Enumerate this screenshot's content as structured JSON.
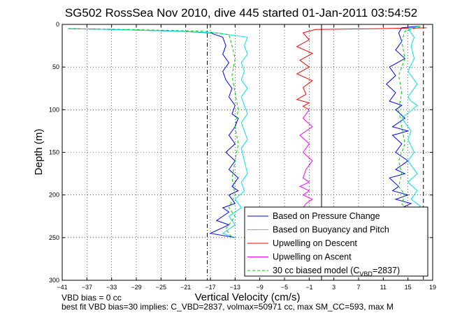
{
  "chart_data": {
    "type": "line",
    "title": "SG502 RossSea Nov 2010, dive 445 started 01-Jan-2011 03:54:52",
    "xlabel": "Vertical Velocity (cm/s)",
    "ylabel": "Depth (m)",
    "xlim": [
      -41,
      19
    ],
    "ylim": [
      0,
      300
    ],
    "y_reversed": true,
    "grid": true,
    "x_ticks": [
      -41,
      -37,
      -33,
      -29,
      -25,
      -21,
      -17,
      -13,
      -9,
      -5,
      -1,
      3,
      7,
      11,
      15,
      19
    ],
    "y_ticks": [
      0,
      50,
      100,
      150,
      200,
      250,
      300
    ],
    "legend_position": "bottom-right",
    "reference_lines": [
      {
        "x": -17.5,
        "style": "dash-dot",
        "color": "#000000"
      },
      {
        "x": 17.5,
        "style": "dashed",
        "color": "#000000"
      },
      {
        "x": 1.0,
        "style": "solid",
        "color": "#000000"
      }
    ],
    "series": [
      {
        "name": "Based on Pressure Change",
        "color": "#0000ff",
        "style": "solid",
        "x": [
          -40,
          -33,
          -22,
          -17,
          -15,
          -14.5,
          -15,
          -14,
          -15,
          -14.5,
          -13.5,
          -14,
          -13,
          -13.5,
          -12.5,
          -13,
          -14,
          -13,
          -14.5,
          -13,
          -14,
          -12.5,
          -13.5,
          -12.5,
          -14,
          -13,
          -15,
          -14,
          -16,
          -14,
          -17,
          -13
        ],
        "y": [
          5,
          6,
          8,
          10,
          15,
          25,
          35,
          45,
          55,
          65,
          75,
          85,
          95,
          105,
          110,
          120,
          130,
          140,
          150,
          160,
          170,
          180,
          190,
          195,
          200,
          210,
          215,
          220,
          230,
          235,
          245,
          250
        ]
      },
      {
        "name": "Based on Buoyancy and Pitch",
        "color": "#00e5e5",
        "style": "solid",
        "x": [
          -40,
          -33,
          -22,
          -16,
          -11,
          -11.5,
          -11,
          -12,
          -11.5,
          -12,
          -11,
          -12,
          -11.5,
          -11,
          -12,
          -11.5,
          -11,
          -12,
          -11.5,
          -11,
          -12,
          -11.5,
          -13,
          -12,
          -14,
          -13,
          -15,
          -13
        ],
        "y": [
          5,
          6,
          8,
          10,
          15,
          25,
          35,
          45,
          55,
          65,
          75,
          85,
          95,
          105,
          115,
          125,
          135,
          145,
          160,
          175,
          185,
          195,
          205,
          215,
          225,
          235,
          245,
          250
        ]
      },
      {
        "name": "Upwelling on Descent",
        "color": "#ff0000",
        "style": "solid",
        "x": [
          18,
          10,
          0,
          -2,
          -1,
          -3,
          -0.5,
          -2.5,
          -1,
          -3,
          -0.5,
          -2,
          -1.5,
          -3,
          -1,
          -2,
          -1
        ],
        "y": [
          4,
          5,
          6,
          10,
          18,
          26,
          34,
          42,
          50,
          58,
          66,
          74,
          82,
          88,
          92,
          96,
          100
        ]
      },
      {
        "name": "Upwelling on Ascent",
        "color": "#ff00ff",
        "style": "solid",
        "x": [
          -1,
          -2,
          -0.5,
          -2.5,
          -1,
          -2,
          -0.5,
          -1.5,
          -2,
          -1,
          -2.5,
          -1,
          -2,
          -0.5,
          -1.5,
          -2,
          -1,
          -1.5
        ],
        "y": [
          100,
          110,
          120,
          130,
          140,
          150,
          160,
          170,
          180,
          185,
          190,
          195,
          200,
          205,
          210,
          215,
          218,
          220
        ]
      },
      {
        "name": "30 cc biased model (C_VBD=2837)",
        "color": "#00cc00",
        "style": "dashed",
        "x": [
          -40,
          -30,
          -18,
          -14,
          -13.5,
          -13,
          -13.5,
          -13,
          -12.5,
          -13,
          -12.5,
          -13,
          -13.5,
          -13,
          -14,
          -13,
          -14.5,
          -13.5
        ],
        "y": [
          5,
          6,
          8,
          12,
          25,
          40,
          60,
          80,
          100,
          120,
          140,
          160,
          180,
          200,
          215,
          225,
          240,
          250
        ]
      },
      {
        "name": "",
        "color": "#0000ff",
        "style": "solid",
        "x": [
          17,
          14,
          13.5,
          14,
          13,
          14.5,
          12,
          13,
          11.5,
          13,
          12,
          14,
          13,
          14.5,
          12.5,
          15,
          12.5,
          14,
          13,
          15,
          13,
          14.5,
          12,
          13.5,
          12.5,
          15,
          13,
          15.5,
          14,
          15
        ],
        "y": [
          2,
          4,
          10,
          20,
          30,
          40,
          50,
          60,
          70,
          80,
          90,
          95,
          100,
          110,
          120,
          125,
          130,
          140,
          150,
          160,
          170,
          175,
          180,
          190,
          195,
          200,
          205,
          210,
          215,
          220
        ]
      },
      {
        "name": "",
        "color": "#00e5e5",
        "style": "solid",
        "x": [
          17,
          15,
          16,
          15.5,
          16,
          15,
          16.5,
          15,
          15.5,
          16.5,
          14,
          15.5,
          15,
          16,
          15,
          16.5,
          15,
          16.5,
          15.5,
          17,
          15.5
        ],
        "y": [
          2,
          5,
          15,
          25,
          40,
          55,
          70,
          85,
          90,
          95,
          110,
          125,
          135,
          150,
          160,
          175,
          185,
          195,
          205,
          213,
          220
        ]
      },
      {
        "name": "",
        "color": "#00cc00",
        "style": "dashed",
        "x": [
          17,
          14.5,
          14,
          14.5,
          13.5,
          14,
          13.5,
          14,
          14.5,
          13.5,
          14,
          13.5,
          14.5,
          14,
          15
        ],
        "y": [
          3,
          8,
          20,
          40,
          60,
          80,
          100,
          120,
          140,
          160,
          175,
          190,
          200,
          210,
          220
        ]
      }
    ],
    "legend": [
      "Based on Pressure Change",
      "Based on Buoyancy and Pitch",
      "Upwelling on Descent",
      "Upwelling on Ascent",
      "30 cc biased model (C"
    ],
    "legend_sub": "VBD",
    "legend_tail": "=2837)"
  },
  "notes": {
    "line1": "VBD bias = 0 cc",
    "line2": "best fit VBD bias=30 implies: C_VBD=2837, volmax=50971 cc, max SM_CC=593, max M"
  }
}
